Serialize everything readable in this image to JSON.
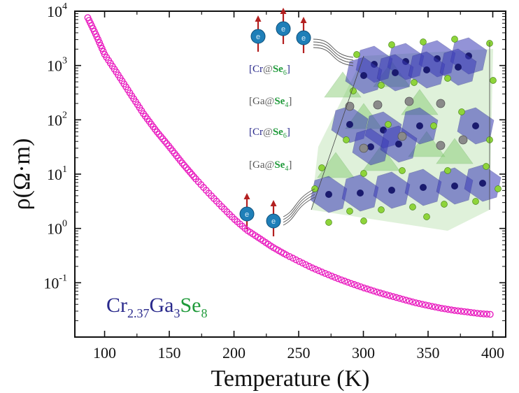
{
  "chart_data": {
    "type": "scatter",
    "xlabel": "Temperature (K)",
    "ylabel": "ρ(Ω·m)",
    "y_scale": "log",
    "xlim": [
      77,
      410
    ],
    "ylim_exponents": [
      -2,
      4
    ],
    "x_ticks": [
      "100",
      "150",
      "200",
      "250",
      "300",
      "350",
      "400"
    ],
    "y_ticks": [
      {
        "base": "10",
        "exp": "4"
      },
      {
        "base": "10",
        "exp": "3"
      },
      {
        "base": "10",
        "exp": "2"
      },
      {
        "base": "10",
        "exp": "1"
      },
      {
        "base": "10",
        "exp": "0"
      },
      {
        "base": "10",
        "exp": "-1"
      }
    ],
    "series": [
      {
        "color": "#e91ec0",
        "marker": "open-circle",
        "points": [
          [
            87,
            7600
          ],
          [
            90,
            5400
          ],
          [
            95,
            3000
          ],
          [
            100,
            1600
          ],
          [
            110,
            700
          ],
          [
            120,
            300
          ],
          [
            130,
            130
          ],
          [
            140,
            62
          ],
          [
            150,
            32
          ],
          [
            160,
            16
          ],
          [
            170,
            8.4
          ],
          [
            180,
            4.6
          ],
          [
            190,
            2.6
          ],
          [
            200,
            1.5
          ],
          [
            210,
            0.93
          ],
          [
            220,
            0.65
          ],
          [
            230,
            0.45
          ],
          [
            240,
            0.33
          ],
          [
            250,
            0.25
          ],
          [
            260,
            0.19
          ],
          [
            270,
            0.15
          ],
          [
            280,
            0.12
          ],
          [
            290,
            0.098
          ],
          [
            300,
            0.081
          ],
          [
            310,
            0.068
          ],
          [
            320,
            0.058
          ],
          [
            330,
            0.05
          ],
          [
            340,
            0.043
          ],
          [
            350,
            0.038
          ],
          [
            360,
            0.034
          ],
          [
            370,
            0.031
          ],
          [
            380,
            0.029
          ],
          [
            390,
            0.027
          ],
          [
            400,
            0.026
          ]
        ]
      }
    ]
  },
  "formula": {
    "cr": "Cr",
    "cr_sub": "2.37",
    "ga": "Ga",
    "ga_sub": "3",
    "se": "Se",
    "se_sub": "8"
  },
  "structure_labels": [
    {
      "open": "[",
      "metal": "Cr",
      "at": "@",
      "ligand": "Se",
      "sub": "6",
      "close": "]"
    },
    {
      "open": "[",
      "metal": "Ga",
      "at": "@",
      "ligand": "Se",
      "sub": "4",
      "close": "]"
    },
    {
      "open": "[",
      "metal": "Cr",
      "at": "@",
      "ligand": "Se",
      "sub": "6",
      "close": "]"
    },
    {
      "open": "[",
      "metal": "Ga",
      "at": "@",
      "ligand": "Se",
      "sub": "4",
      "close": "]"
    }
  ],
  "spin_label": "e",
  "colors": {
    "data": "#e91ec0",
    "cr": "#2a2a8c",
    "ga": "#555555",
    "se": "#1f9a3a",
    "octahedron": "#3b3bb8",
    "tetrahedron": "#7fc96a",
    "se_atom": "#8ed43a",
    "ga_atom": "#8a8a8a",
    "spin_ball": "#1f7fb8",
    "spin_arrow": "#b32020"
  }
}
